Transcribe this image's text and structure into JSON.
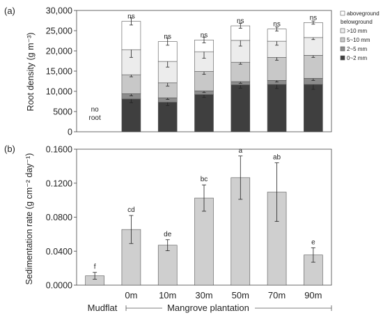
{
  "chart_data": [
    {
      "panel_label": "(a)",
      "type": "bar",
      "stacked": true,
      "ylabel": "Root density (g m⁻³)",
      "yticks": [
        "0",
        "5000",
        "10,000",
        "15,000",
        "20,000",
        "25,000",
        "30,000"
      ],
      "ylim": [
        0,
        30000
      ],
      "categories": [
        "Mudflat",
        "0m",
        "10m",
        "30m",
        "50m",
        "70m",
        "90m"
      ],
      "no_data_label": [
        "no",
        "root"
      ],
      "significance": [
        "",
        "ns",
        "ns",
        "ns",
        "ns",
        "ns",
        "ns"
      ],
      "legend": {
        "position": "top-right",
        "entries": [
          "aboveground",
          "belowground",
          ">10 mm",
          "5~10 mm",
          "2~5 mm",
          "0~2 mm"
        ]
      },
      "series": [
        {
          "name": "0~2 mm",
          "color": "#3f3f3f",
          "values": [
            0,
            8100,
            7300,
            9200,
            11600,
            11700,
            11700
          ],
          "errors": [
            0,
            900,
            800,
            700,
            800,
            1000,
            1200
          ]
        },
        {
          "name": "2~5 mm",
          "color": "#8c8c8c",
          "values": [
            0,
            1300,
            1100,
            900,
            800,
            1000,
            1500
          ],
          "errors": [
            0,
            500,
            400,
            400,
            400,
            400,
            500
          ]
        },
        {
          "name": "5~10 mm",
          "color": "#c8c8c8",
          "values": [
            0,
            4700,
            3700,
            4800,
            4800,
            5700,
            5700
          ],
          "errors": [
            0,
            500,
            800,
            700,
            500,
            700,
            500
          ]
        },
        {
          "name": ">10 mm",
          "color": "#ececec",
          "values": [
            0,
            6200,
            5300,
            4900,
            5400,
            4000,
            4400
          ],
          "errors": [
            0,
            1900,
            1400,
            1600,
            1400,
            1000,
            500
          ]
        },
        {
          "name": "aboveground",
          "color": "#ffffff",
          "values": [
            0,
            7000,
            4900,
            2900,
            3600,
            3000,
            3700
          ],
          "errors": [
            0,
            900,
            900,
            700,
            600,
            500,
            400
          ]
        }
      ]
    },
    {
      "panel_label": "(b)",
      "type": "bar",
      "ylabel": "Sedimentation rate (g cm⁻² day⁻¹)",
      "yticks": [
        "0.0000",
        "0.0400",
        "0.0800",
        "0.1200",
        "0.1600"
      ],
      "ylim": [
        0,
        0.16
      ],
      "categories": [
        "Mudflat",
        "0m",
        "10m",
        "30m",
        "50m",
        "70m",
        "90m"
      ],
      "values": [
        0.011,
        0.0655,
        0.047,
        0.1025,
        0.1265,
        0.1095,
        0.0355
      ],
      "errors": [
        0.004,
        0.0165,
        0.0065,
        0.0155,
        0.0255,
        0.0345,
        0.0085
      ],
      "letters": [
        "f",
        "cd",
        "de",
        "bc",
        "a",
        "ab",
        "e"
      ],
      "bar_color": "#cfcfcf",
      "group_label": "Mangrove plantation"
    }
  ]
}
